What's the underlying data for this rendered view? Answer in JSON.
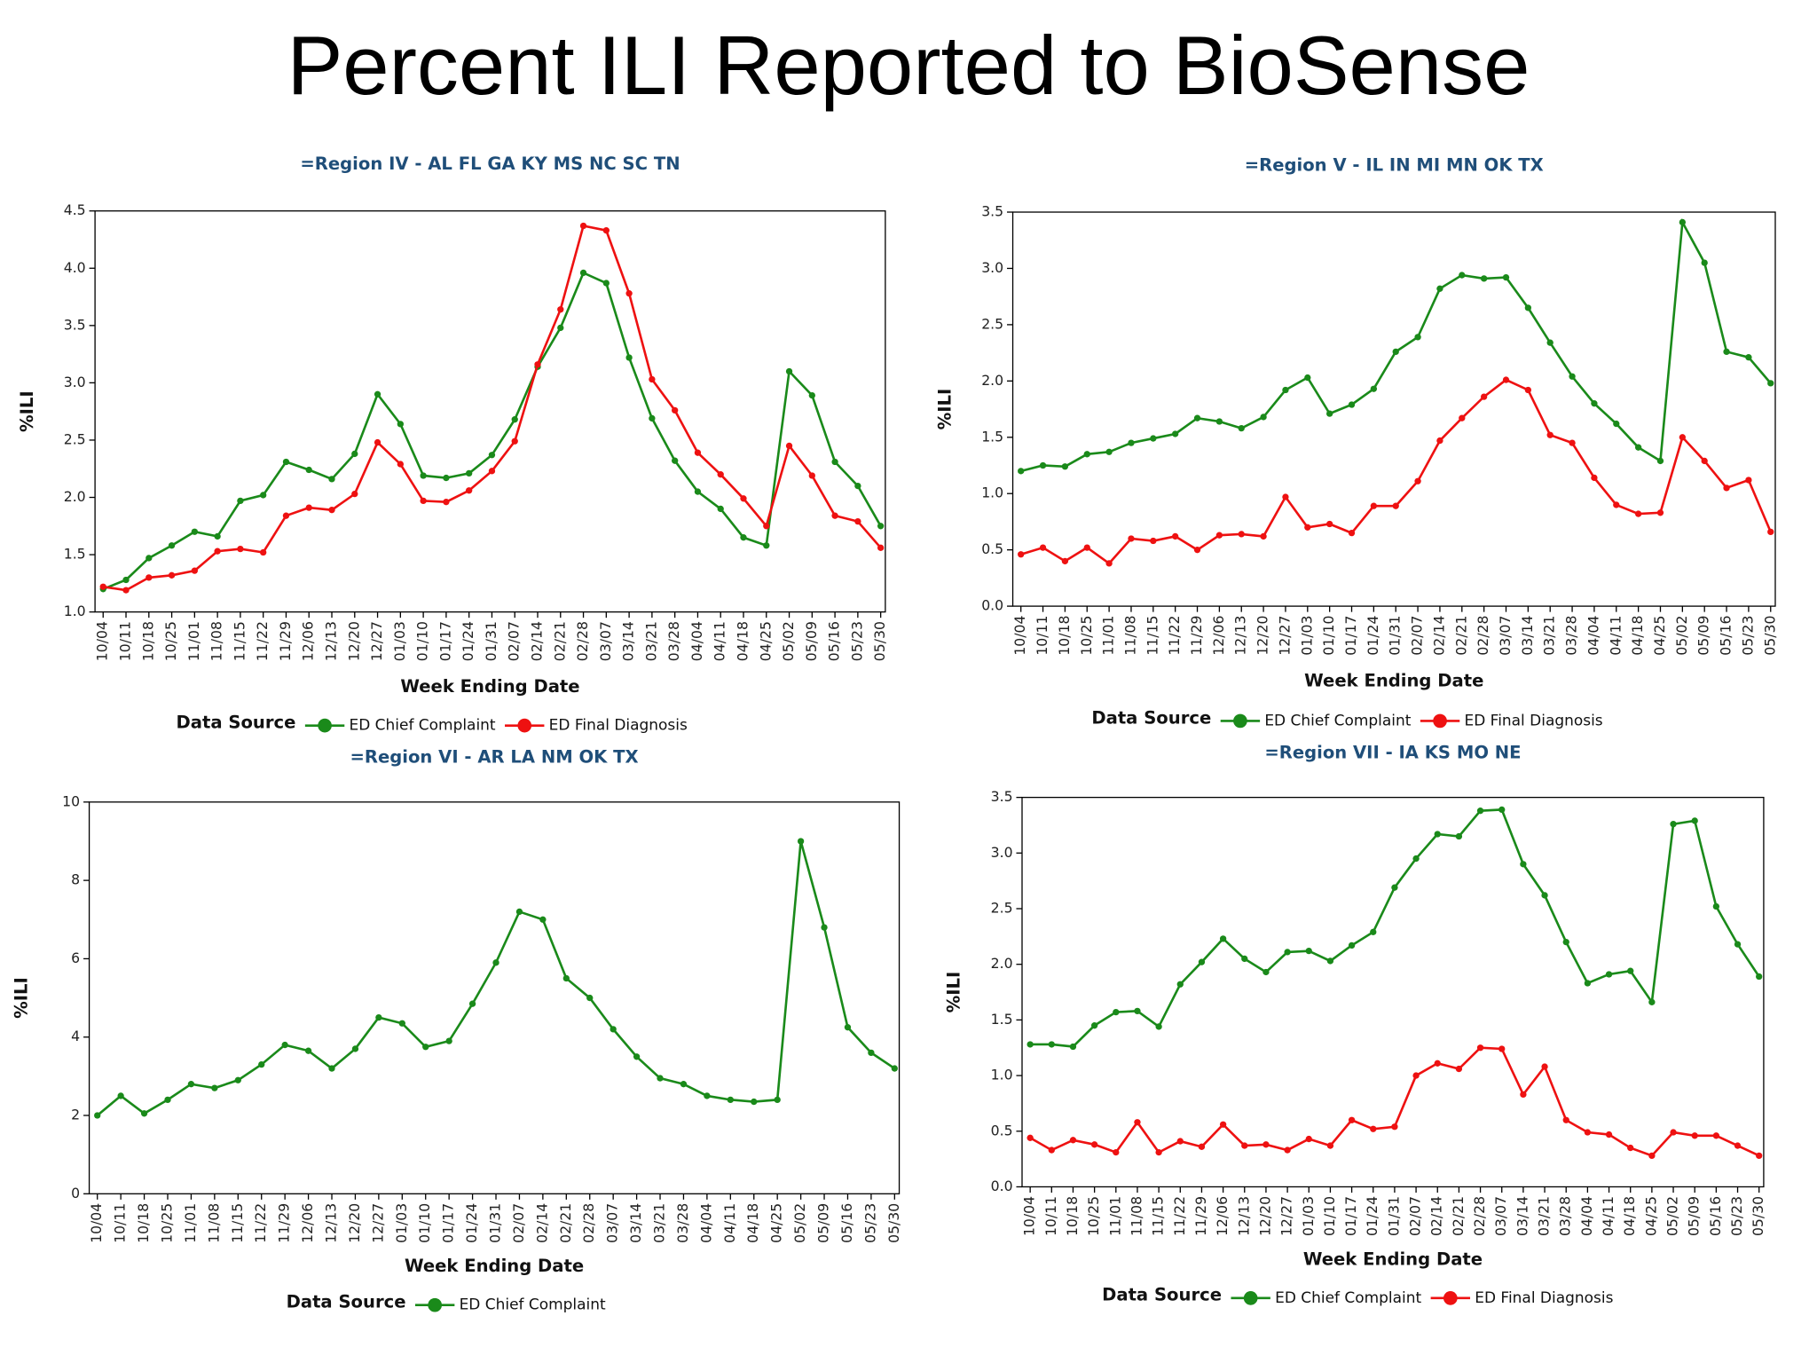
{
  "header": {
    "title": "Percent ILI Reported to BioSense"
  },
  "chart_data": [
    {
      "type": "line",
      "subtitle": "=Region IV - AL FL GA KY MS NC SC TN",
      "ylabel": "%ILI",
      "xlabel": "Week Ending Date",
      "legend_title": "Data Source",
      "categories": [
        "10/04",
        "10/11",
        "10/18",
        "10/25",
        "11/01",
        "11/08",
        "11/15",
        "11/22",
        "11/29",
        "12/06",
        "12/13",
        "12/20",
        "12/27",
        "01/03",
        "01/10",
        "01/17",
        "01/24",
        "01/31",
        "02/07",
        "02/14",
        "02/21",
        "02/28",
        "03/07",
        "03/14",
        "03/21",
        "03/28",
        "04/04",
        "04/11",
        "04/18",
        "04/25",
        "05/02",
        "05/09",
        "05/16",
        "05/23",
        "05/30"
      ],
      "series": [
        {
          "name": "ED Chief Complaint",
          "color": "#1a8a1a",
          "values": [
            1.2,
            1.28,
            1.47,
            1.58,
            1.7,
            1.66,
            1.97,
            2.02,
            2.31,
            2.24,
            2.16,
            2.38,
            2.9,
            2.64,
            2.19,
            2.17,
            2.21,
            2.37,
            2.68,
            3.14,
            3.48,
            3.96,
            3.87,
            3.22,
            2.69,
            2.32,
            2.05,
            1.9,
            1.65,
            1.58,
            3.1,
            2.89,
            2.31,
            2.1,
            1.75
          ]
        },
        {
          "name": "ED Final Diagnosis",
          "color": "#ee1111",
          "values": [
            1.22,
            1.19,
            1.3,
            1.32,
            1.36,
            1.53,
            1.55,
            1.52,
            1.84,
            1.91,
            1.89,
            2.03,
            2.48,
            2.29,
            1.97,
            1.96,
            2.06,
            2.23,
            2.49,
            3.16,
            3.64,
            4.37,
            4.33,
            3.78,
            3.03,
            2.76,
            2.39,
            2.2,
            1.99,
            1.75,
            2.45,
            2.19,
            1.84,
            1.79,
            1.56
          ]
        }
      ],
      "ylim": [
        1.0,
        4.5
      ],
      "yticks": [
        {
          "value": 1.0,
          "label": "1.0"
        },
        {
          "value": 1.5,
          "label": "1.5"
        },
        {
          "value": 2.0,
          "label": "2.0"
        },
        {
          "value": 2.5,
          "label": "2.5"
        },
        {
          "value": 3.0,
          "label": "3.0"
        },
        {
          "value": 3.5,
          "label": "3.5"
        },
        {
          "value": 4.0,
          "label": "4.0"
        },
        {
          "value": 4.5,
          "label": "4.5"
        }
      ]
    },
    {
      "type": "line",
      "subtitle": "=Region V - IL IN MI MN OK TX",
      "ylabel": "%ILI",
      "xlabel": "Week Ending Date",
      "legend_title": "Data Source",
      "categories": [
        "10/04",
        "10/11",
        "10/18",
        "10/25",
        "11/01",
        "11/08",
        "11/15",
        "11/22",
        "11/29",
        "12/06",
        "12/13",
        "12/20",
        "12/27",
        "01/03",
        "01/10",
        "01/17",
        "01/24",
        "01/31",
        "02/07",
        "02/14",
        "02/21",
        "02/28",
        "03/07",
        "03/14",
        "03/21",
        "03/28",
        "04/04",
        "04/11",
        "04/18",
        "04/25",
        "05/02",
        "05/09",
        "05/16",
        "05/23",
        "05/30"
      ],
      "series": [
        {
          "name": "ED Chief Complaint",
          "color": "#1a8a1a",
          "values": [
            1.2,
            1.25,
            1.24,
            1.35,
            1.37,
            1.45,
            1.49,
            1.53,
            1.67,
            1.64,
            1.58,
            1.68,
            1.92,
            2.03,
            1.71,
            1.79,
            1.93,
            2.26,
            2.39,
            2.82,
            2.94,
            2.91,
            2.92,
            2.65,
            2.34,
            2.04,
            1.8,
            1.62,
            1.41,
            1.29,
            3.41,
            3.05,
            2.26,
            2.21,
            1.98
          ]
        },
        {
          "name": "ED Final Diagnosis",
          "color": "#ee1111",
          "values": [
            0.46,
            0.52,
            0.4,
            0.52,
            0.38,
            0.6,
            0.58,
            0.62,
            0.5,
            0.63,
            0.64,
            0.62,
            0.97,
            0.7,
            0.73,
            0.65,
            0.89,
            0.89,
            1.11,
            1.47,
            1.67,
            1.86,
            2.01,
            1.92,
            1.52,
            1.45,
            1.14,
            0.9,
            0.82,
            0.83,
            1.5,
            1.29,
            1.05,
            1.12,
            0.66
          ]
        }
      ],
      "ylim": [
        0.0,
        3.5
      ],
      "yticks": [
        {
          "value": 0.0,
          "label": "0.0"
        },
        {
          "value": 0.5,
          "label": "0.5"
        },
        {
          "value": 1.0,
          "label": "1.0"
        },
        {
          "value": 1.5,
          "label": "1.5"
        },
        {
          "value": 2.0,
          "label": "2.0"
        },
        {
          "value": 2.5,
          "label": "2.5"
        },
        {
          "value": 3.0,
          "label": "3.0"
        },
        {
          "value": 3.5,
          "label": "3.5"
        }
      ]
    },
    {
      "type": "line",
      "subtitle": "=Region VI - AR LA NM OK TX",
      "ylabel": "%ILI",
      "xlabel": "Week Ending Date",
      "legend_title": "Data Source",
      "categories": [
        "10/04",
        "10/11",
        "10/18",
        "10/25",
        "11/01",
        "11/08",
        "11/15",
        "11/22",
        "11/29",
        "12/06",
        "12/13",
        "12/20",
        "12/27",
        "01/03",
        "01/10",
        "01/17",
        "01/24",
        "01/31",
        "02/07",
        "02/14",
        "02/21",
        "02/28",
        "03/07",
        "03/14",
        "03/21",
        "03/28",
        "04/04",
        "04/11",
        "04/18",
        "04/25",
        "05/02",
        "05/09",
        "05/16",
        "05/23",
        "05/30"
      ],
      "series": [
        {
          "name": "ED Chief Complaint",
          "color": "#1a8a1a",
          "values": [
            2.0,
            2.5,
            2.05,
            2.4,
            2.8,
            2.7,
            2.9,
            3.3,
            3.8,
            3.65,
            3.2,
            3.7,
            4.5,
            4.35,
            3.75,
            3.9,
            4.85,
            5.9,
            7.2,
            7.0,
            5.5,
            5.0,
            4.2,
            3.5,
            2.95,
            2.8,
            2.5,
            2.4,
            2.35,
            2.4,
            9.0,
            6.8,
            4.25,
            3.6,
            3.2
          ]
        }
      ],
      "ylim": [
        0,
        10
      ],
      "yticks": [
        0,
        2,
        4,
        6,
        8,
        10
      ]
    },
    {
      "type": "line",
      "subtitle": "=Region VII - IA KS MO NE",
      "ylabel": "%ILI",
      "xlabel": "Week Ending Date",
      "legend_title": "Data Source",
      "categories": [
        "10/04",
        "10/11",
        "10/18",
        "10/25",
        "11/01",
        "11/08",
        "11/15",
        "11/22",
        "11/29",
        "12/06",
        "12/13",
        "12/20",
        "12/27",
        "01/03",
        "01/10",
        "01/17",
        "01/24",
        "01/31",
        "02/07",
        "02/14",
        "02/21",
        "02/28",
        "03/07",
        "03/14",
        "03/21",
        "03/28",
        "04/04",
        "04/11",
        "04/18",
        "04/25",
        "05/02",
        "05/09",
        "05/16",
        "05/23",
        "05/30"
      ],
      "series": [
        {
          "name": "ED Chief Complaint",
          "color": "#1a8a1a",
          "values": [
            1.28,
            1.28,
            1.26,
            1.45,
            1.57,
            1.58,
            1.44,
            1.82,
            2.02,
            2.23,
            2.05,
            1.93,
            2.11,
            2.12,
            2.03,
            2.17,
            2.29,
            2.69,
            2.95,
            3.17,
            3.15,
            3.38,
            3.39,
            2.9,
            2.62,
            2.2,
            1.83,
            1.91,
            1.94,
            1.66,
            3.26,
            3.29,
            2.52,
            2.18,
            1.89
          ]
        },
        {
          "name": "ED Final Diagnosis",
          "color": "#ee1111",
          "values": [
            0.44,
            0.33,
            0.42,
            0.38,
            0.31,
            0.58,
            0.31,
            0.41,
            0.36,
            0.56,
            0.37,
            0.38,
            0.33,
            0.43,
            0.37,
            0.6,
            0.52,
            0.54,
            1.0,
            1.11,
            1.06,
            1.25,
            1.24,
            0.83,
            1.08,
            0.6,
            0.49,
            0.47,
            0.35,
            0.28,
            0.49,
            0.46,
            0.46,
            0.37,
            0.28
          ]
        }
      ],
      "ylim": [
        0.0,
        3.5
      ],
      "yticks": [
        {
          "value": 0.0,
          "label": "0.0"
        },
        {
          "value": 0.5,
          "label": "0.5"
        },
        {
          "value": 1.0,
          "label": "1.0"
        },
        {
          "value": 1.5,
          "label": "1.5"
        },
        {
          "value": 2.0,
          "label": "2.0"
        },
        {
          "value": 2.5,
          "label": "2.5"
        },
        {
          "value": 3.0,
          "label": "3.0"
        },
        {
          "value": 3.5,
          "label": "3.5"
        }
      ]
    }
  ]
}
